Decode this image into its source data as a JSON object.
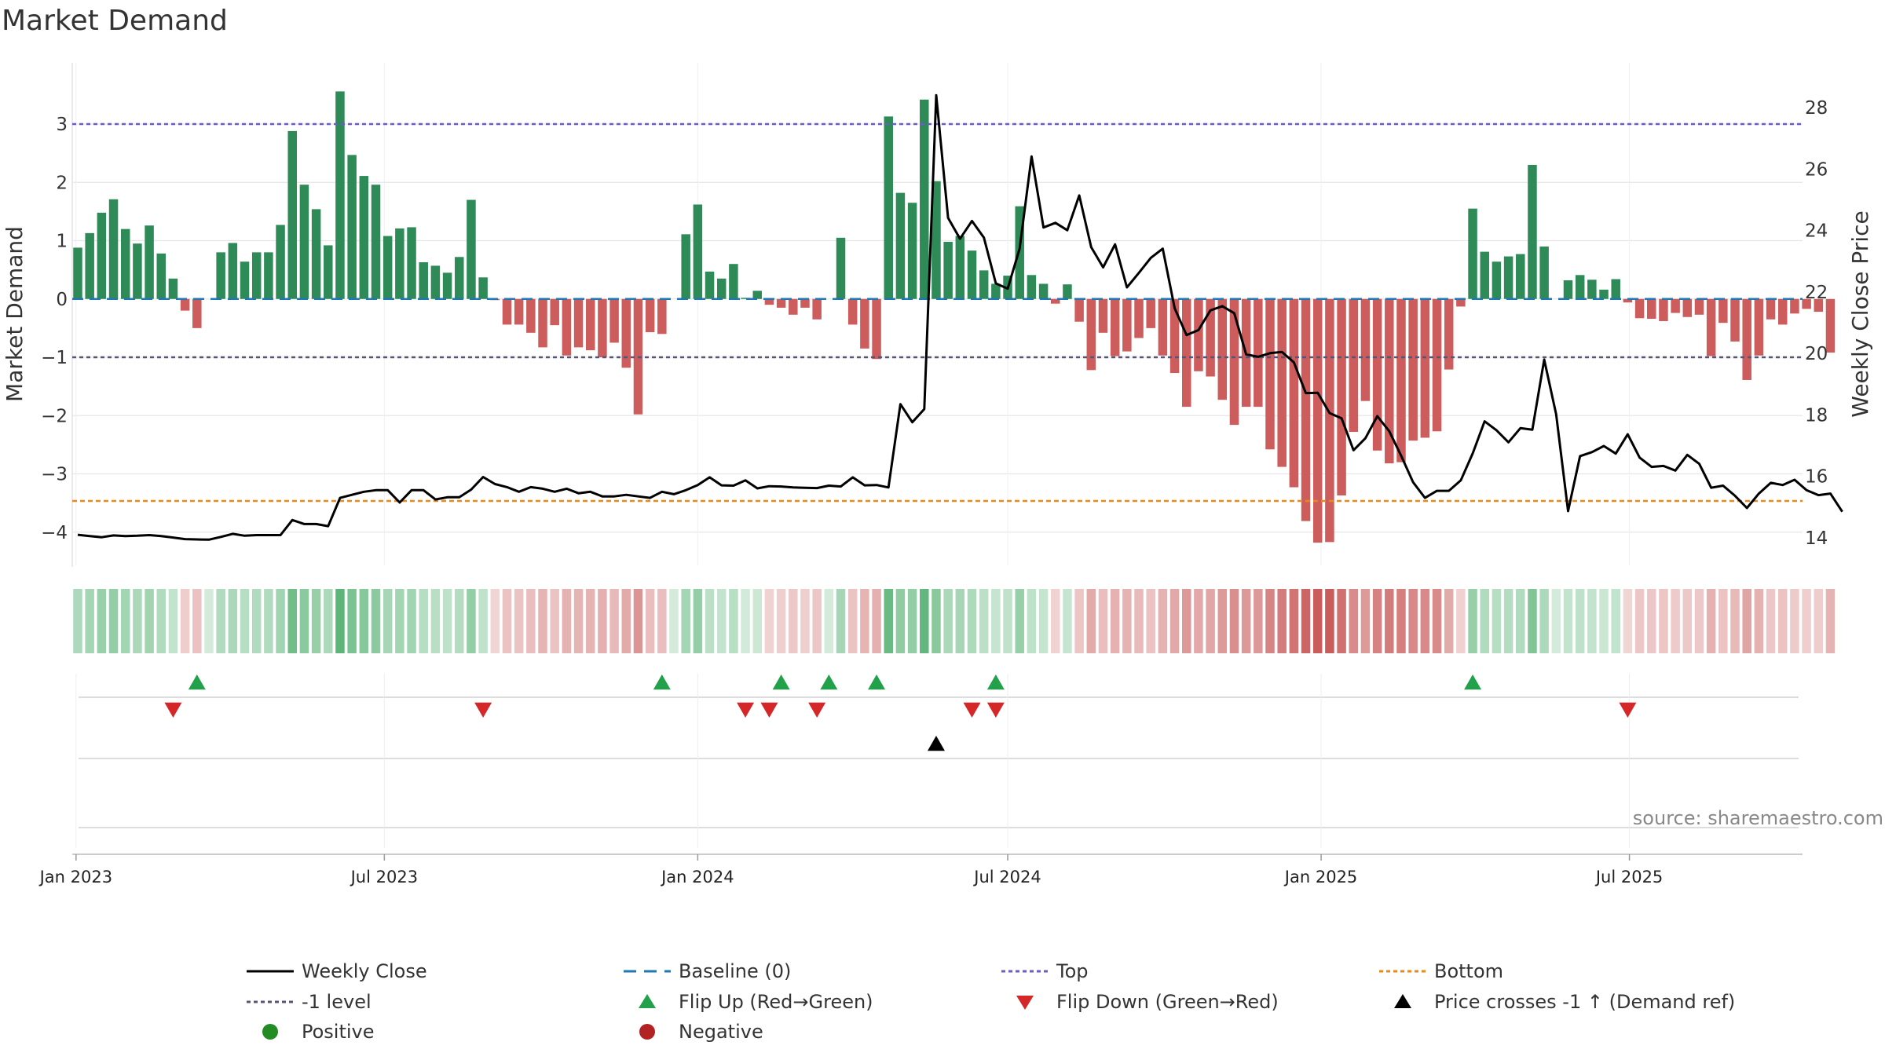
{
  "chart_data": {
    "type": "bar",
    "title": "Market Demand",
    "source": "source: sharemaestro.com",
    "ylabel_left": "Market Demand",
    "ylabel_right": "Weekly Close Price",
    "xlabel": "",
    "x_tick_labels": [
      "Jan 2023",
      "Jul 2023",
      "Jan 2024",
      "Jul 2024",
      "Jan 2025",
      "Jul 2025"
    ],
    "y_left_ticks": [
      "3",
      "2",
      "1",
      "0",
      "−1",
      "−2",
      "−3",
      "−4"
    ],
    "y_right_ticks": [
      "28",
      "26",
      "24",
      "22",
      "20",
      "18",
      "16",
      "14"
    ],
    "ylim_left": [
      -4.4,
      3.9
    ],
    "ylim_right": [
      13.3,
      29.2
    ],
    "grid": true,
    "reference_lines": {
      "top": 3,
      "minus_one": -1,
      "bottom_price": 15.2,
      "baseline": 0
    },
    "week_start": "2023-01-02",
    "colors": {
      "positive_bar": "#2e8b57",
      "negative_bar": "#cd5c5c",
      "price_line": "#000000",
      "baseline": "#1f77b4",
      "top": "#6a5acd",
      "minus_one": "#555577",
      "bottom": "#e8891a",
      "flip_up": "#22a04a",
      "flip_down": "#d62728",
      "cross": "#000000",
      "positive_dot": "#228b22",
      "negative_dot": "#b22222"
    },
    "series": [
      {
        "name": "Market Demand",
        "values": [
          0.88,
          1.13,
          1.48,
          1.71,
          1.2,
          0.95,
          1.26,
          0.78,
          0.35,
          -0.2,
          -0.5,
          0.0,
          0.8,
          0.96,
          0.64,
          0.8,
          0.8,
          1.27,
          2.88,
          1.96,
          1.54,
          0.92,
          3.56,
          2.47,
          2.11,
          1.96,
          1.08,
          1.21,
          1.23,
          0.63,
          0.57,
          0.45,
          0.72,
          1.7,
          0.37,
          -0.02,
          -0.44,
          -0.44,
          -0.58,
          -0.83,
          -0.45,
          -0.97,
          -0.83,
          -0.88,
          -1.0,
          -0.75,
          -1.18,
          -1.98,
          -0.57,
          -0.6,
          0.0,
          1.11,
          1.62,
          0.47,
          0.35,
          0.6,
          0.02,
          0.14,
          -0.1,
          -0.15,
          -0.27,
          -0.15,
          -0.35,
          0.0,
          1.05,
          -0.44,
          -0.85,
          -1.03,
          3.13,
          1.82,
          1.65,
          3.42,
          2.02,
          0.98,
          1.08,
          0.83,
          0.49,
          0.26,
          0.4,
          1.59,
          0.41,
          0.26,
          -0.08,
          0.25,
          -0.39,
          -1.22,
          -0.58,
          -0.98,
          -0.9,
          -0.67,
          -0.5,
          -0.97,
          -1.27,
          -1.85,
          -1.24,
          -1.33,
          -1.73,
          -2.16,
          -1.85,
          -1.85,
          -2.58,
          -2.88,
          -3.23,
          -3.81,
          -4.18,
          -4.17,
          -3.37,
          -2.28,
          -1.75,
          -2.6,
          -2.82,
          -2.8,
          -2.43,
          -2.38,
          -2.27,
          -1.21,
          -0.13,
          1.55,
          0.81,
          0.64,
          0.73,
          0.77,
          2.3,
          0.9,
          0.0,
          0.32,
          0.41,
          0.33,
          0.16,
          0.34,
          -0.06,
          -0.33,
          -0.34,
          -0.38,
          -0.24,
          -0.31,
          -0.27,
          -0.98,
          -0.41,
          -0.73,
          -1.39,
          -0.97,
          -0.35,
          -0.44,
          -0.25,
          -0.17,
          -0.22,
          -0.92
        ]
      },
      {
        "name": "Weekly Close",
        "values": [
          14.1,
          14.06,
          14.02,
          14.08,
          14.06,
          14.07,
          14.09,
          14.06,
          14.01,
          13.96,
          13.95,
          13.94,
          14.03,
          14.13,
          14.07,
          14.09,
          14.09,
          14.09,
          14.58,
          14.45,
          14.45,
          14.38,
          15.3,
          15.4,
          15.5,
          15.55,
          15.55,
          15.15,
          15.55,
          15.55,
          15.25,
          15.32,
          15.32,
          15.57,
          15.98,
          15.75,
          15.65,
          15.5,
          15.65,
          15.6,
          15.5,
          15.6,
          15.45,
          15.5,
          15.35,
          15.35,
          15.4,
          15.35,
          15.3,
          15.5,
          15.42,
          15.55,
          15.72,
          15.97,
          15.71,
          15.7,
          15.87,
          15.61,
          15.68,
          15.67,
          15.64,
          15.63,
          15.62,
          15.7,
          15.67,
          15.97,
          15.71,
          15.72,
          15.64,
          18.35,
          17.76,
          18.19,
          28.4,
          24.41,
          23.73,
          24.31,
          23.77,
          22.28,
          22.11,
          23.41,
          26.41,
          24.1,
          24.25,
          24.01,
          25.14,
          23.46,
          22.8,
          23.55,
          22.15,
          22.62,
          23.11,
          23.41,
          21.47,
          20.6,
          20.76,
          21.4,
          21.54,
          21.31,
          19.97,
          19.89,
          20.01,
          20.05,
          19.71,
          18.71,
          18.72,
          18.06,
          17.89,
          16.85,
          17.24,
          17.96,
          17.47,
          16.67,
          15.81,
          15.3,
          15.53,
          15.53,
          15.87,
          16.75,
          17.79,
          17.5,
          17.11,
          17.57,
          17.52,
          19.8,
          18.02,
          14.87,
          16.66,
          16.79,
          16.99,
          16.74,
          17.37,
          16.61,
          16.31,
          16.34,
          16.19,
          16.7,
          16.41,
          15.63,
          15.7,
          15.37,
          14.97,
          15.44,
          15.79,
          15.72,
          15.89,
          15.55,
          15.39,
          15.44,
          14.85
        ]
      }
    ],
    "heat_strip": [
      {
        "name": "Market Demand strength"
      }
    ],
    "events": {
      "flip_up_weeks": [
        10,
        49,
        59,
        63,
        67,
        77,
        117
      ],
      "flip_down_weeks": [
        8,
        34,
        56,
        58,
        62,
        75,
        77,
        130
      ],
      "price_cross_weeks": [
        72
      ]
    },
    "legend": {
      "placement": "bottom",
      "items": [
        {
          "label": "Weekly Close",
          "kind": "line-solid",
          "color": "#000000"
        },
        {
          "label": "Baseline (0)",
          "kind": "line-dashed",
          "color": "#1f77b4"
        },
        {
          "label": "Top",
          "kind": "line-dotted",
          "color": "#6a5acd"
        },
        {
          "label": "Bottom",
          "kind": "line-dotted",
          "color": "#e8891a"
        },
        {
          "label": "-1 level",
          "kind": "line-dotted",
          "color": "#555577"
        },
        {
          "label": "Flip Up (Red→Green)",
          "kind": "triangle-up",
          "color": "#22a04a"
        },
        {
          "label": "Flip Down (Green→Red)",
          "kind": "triangle-down",
          "color": "#d62728"
        },
        {
          "label": "Price crosses -1 ↑ (Demand ref)",
          "kind": "triangle-up",
          "color": "#000000"
        },
        {
          "label": "Positive",
          "kind": "dot",
          "color": "#228b22"
        },
        {
          "label": "Negative",
          "kind": "dot",
          "color": "#b22222"
        }
      ]
    }
  }
}
